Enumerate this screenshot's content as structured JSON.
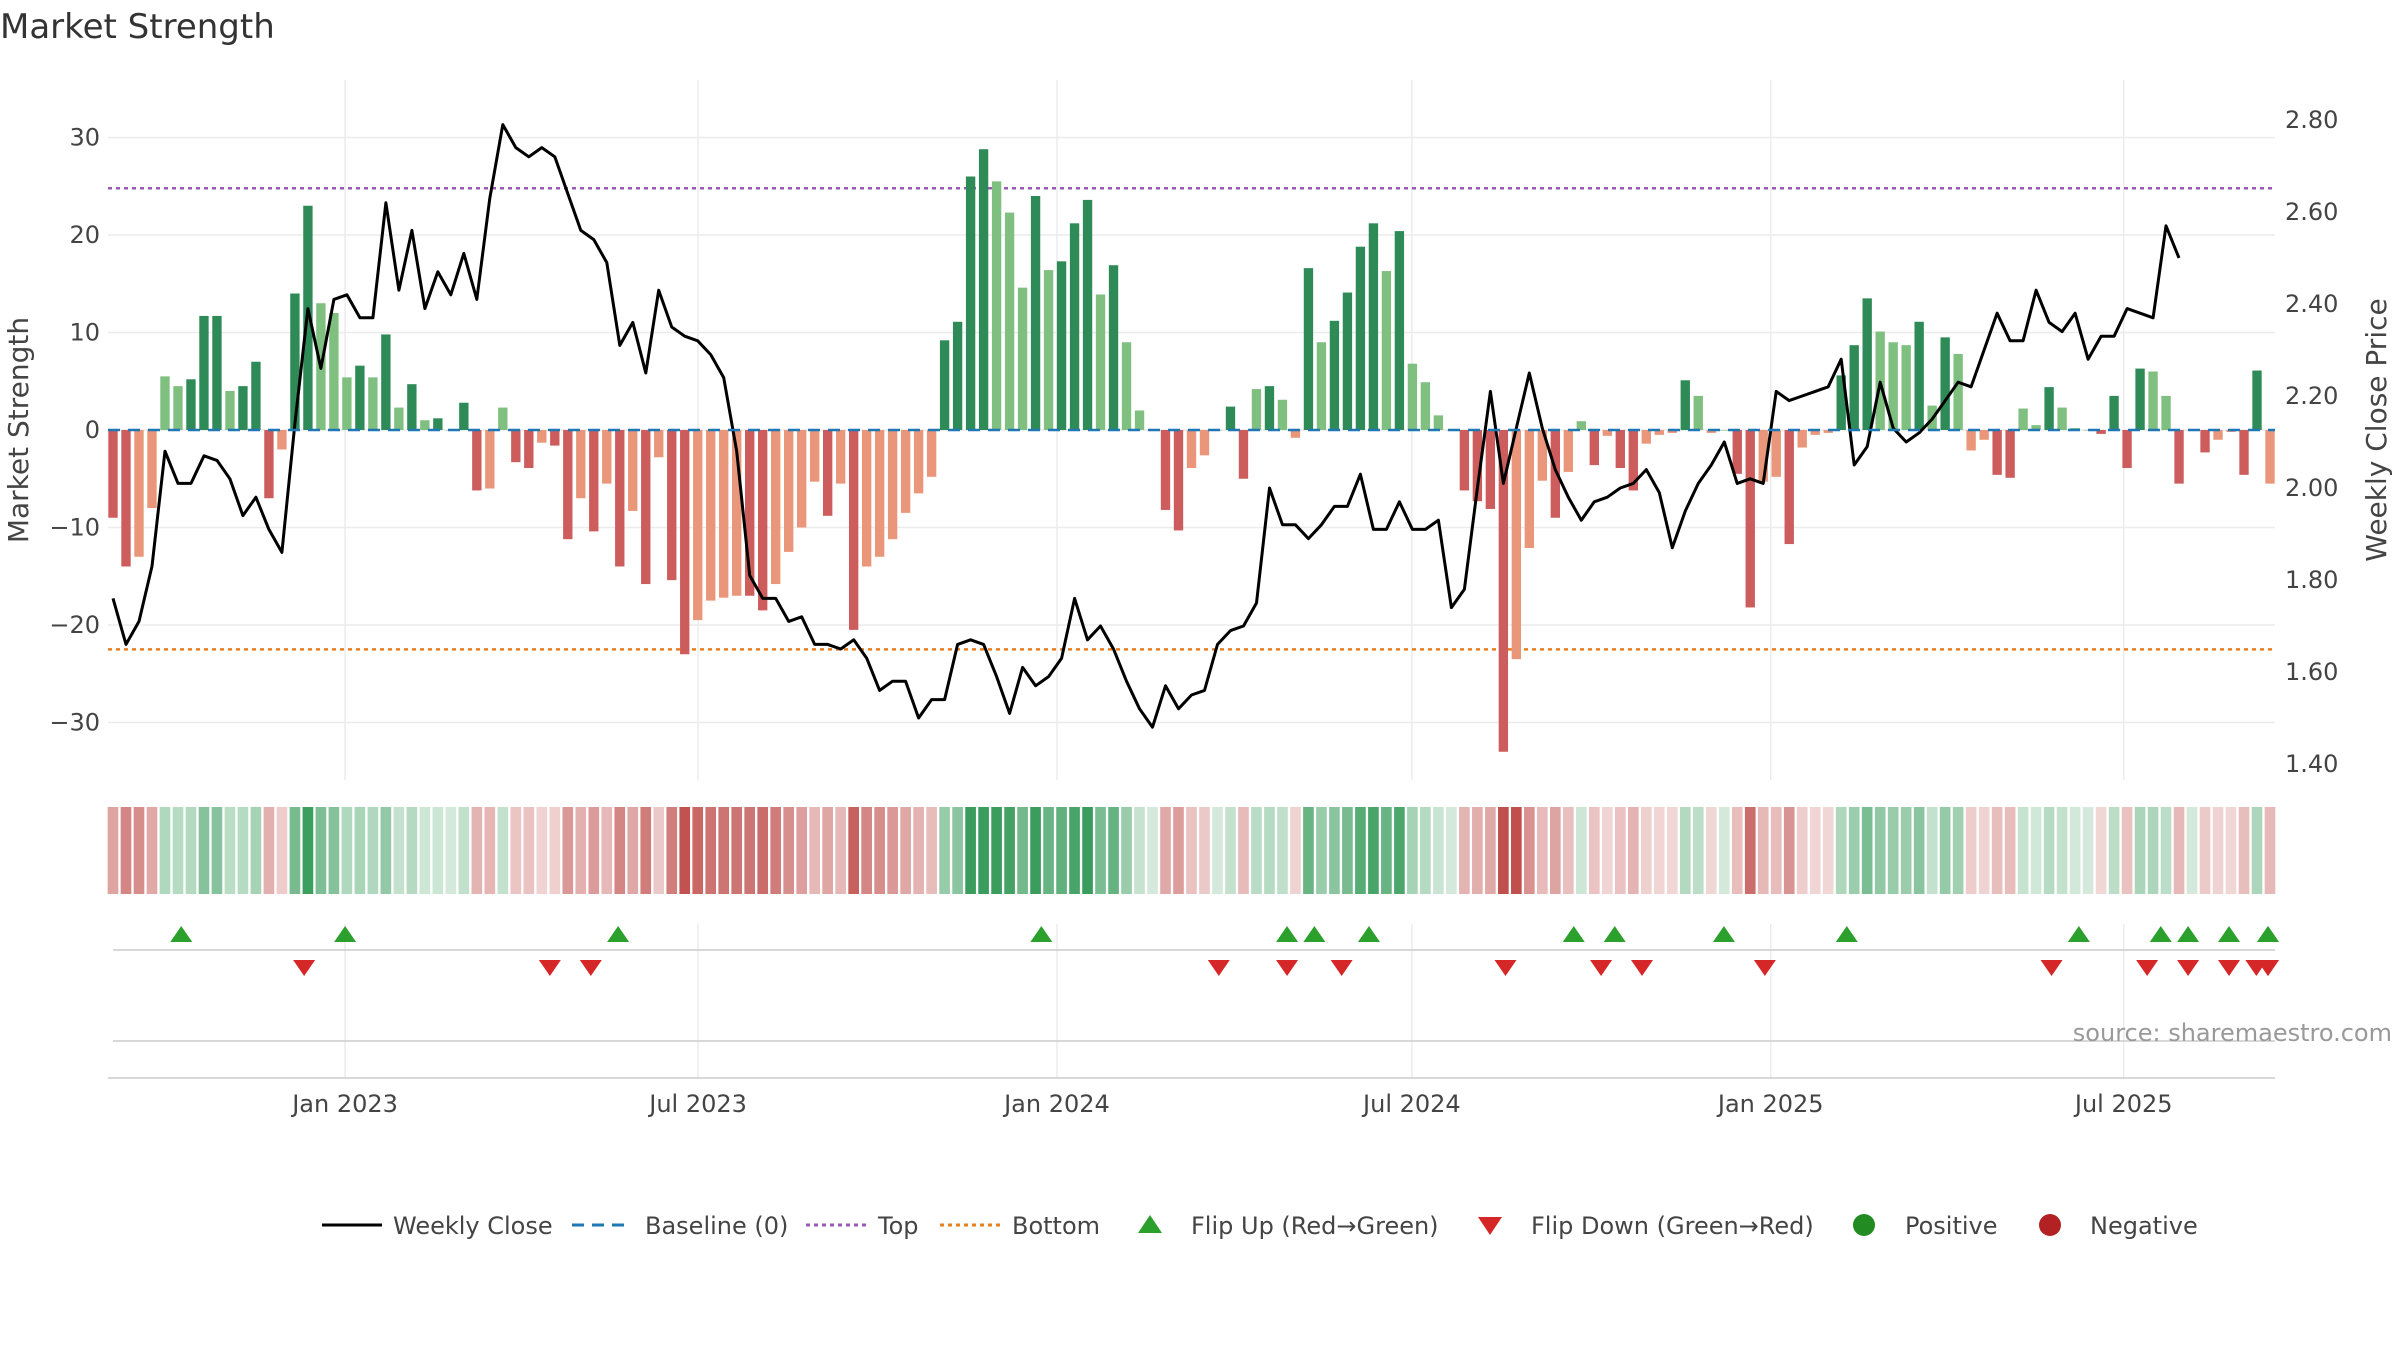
{
  "title": "Market Strength",
  "source": "source: sharemaestro.com",
  "colors": {
    "pos_strong": "#2e8b57",
    "pos_light": "#7fbf7f",
    "neg_strong": "#cd5c5c",
    "neg_light": "#e9967a",
    "price_line": "#000000",
    "baseline": "#1f77b4",
    "top": "#9b59b6",
    "bottom": "#e67e22",
    "flip_up": "#2ca02c",
    "flip_down": "#d62728",
    "positive_dot": "#228b22",
    "negative_dot": "#b22222"
  },
  "chart_data": {
    "type": "bar",
    "title": "Market Strength",
    "ylabel": "Market Strength",
    "y2label": "Weekly Close Price",
    "ylim": [
      -36,
      36
    ],
    "y2lim": [
      1.34,
      2.86
    ],
    "yticks": [
      -30,
      -20,
      -10,
      0,
      10,
      20,
      30
    ],
    "ytick_labels": [
      "−30",
      "−20",
      "−10",
      "0",
      "10",
      "20",
      "30"
    ],
    "y2ticks": [
      1.4,
      1.6,
      1.8,
      2.0,
      2.2,
      2.4,
      2.6,
      2.8
    ],
    "y2tick_labels": [
      "1.40",
      "1.60",
      "1.80",
      "2.00",
      "2.20",
      "2.40",
      "2.60",
      "2.80"
    ],
    "x_start": "2022-09-04",
    "x_end": "2025-09-14",
    "xticks": [
      "2023-01-01",
      "2023-07-01",
      "2024-01-01",
      "2024-07-01",
      "2025-01-01",
      "2025-07-01"
    ],
    "xtick_labels": [
      "Jan 2023",
      "Jul 2023",
      "Jan 2024",
      "Jul 2024",
      "Jan 2025",
      "Jul 2025"
    ],
    "top_line": 24.8,
    "bottom_line": -22.5,
    "baseline": 0,
    "grid": true,
    "legend_position": "bottom",
    "legend": [
      "Weekly Close",
      "Baseline (0)",
      "Top",
      "Bottom",
      "Flip Up (Red→Green)",
      "Flip Down (Green→Red)",
      "Positive",
      "Negative"
    ],
    "series": [
      {
        "name": "Market Strength",
        "values": [
          -9,
          -14,
          -13,
          -8,
          5.5,
          4.5,
          5.2,
          11.7,
          11.7,
          4,
          4.5,
          7,
          -7,
          -2,
          14,
          23,
          13,
          12,
          5.4,
          6.6,
          5.4,
          9.8,
          2.3,
          4.7,
          1,
          1.2,
          0,
          2.8,
          -6.2,
          -6,
          2.3,
          -3.3,
          -3.9,
          -1.3,
          -1.6,
          -11.2,
          -7,
          -10.4,
          -5.5,
          -14,
          -8.3,
          -15.8,
          -2.8,
          -15.4,
          -23,
          -19.5,
          -17.5,
          -17.2,
          -17,
          -17,
          -18.5,
          -15.8,
          -12.5,
          -10,
          -5.3,
          -8.8,
          -5.5,
          -20.5,
          -14,
          -13,
          -11.2,
          -8.5,
          -6.5,
          -4.8,
          9.2,
          11.1,
          26,
          28.8,
          25.5,
          22.3,
          14.6,
          24,
          16.4,
          17.3,
          21.2,
          23.6,
          13.9,
          16.9,
          9,
          2,
          0,
          -8.2,
          -10.3,
          -3.9,
          -2.6,
          0,
          2.4,
          -5,
          4.2,
          4.5,
          3.1,
          -0.8,
          16.6,
          9,
          11.2,
          14.1,
          18.8,
          21.2,
          16.3,
          20.4,
          6.8,
          4.9,
          1.5,
          0,
          -6.2,
          -7.3,
          -8.1,
          -33,
          -23.5,
          -12.1,
          -5.2,
          -9,
          -4.3,
          0.9,
          -3.6,
          -0.6,
          -3.9,
          -6.2,
          -1.4,
          -0.5,
          -0.3,
          5.1,
          3.5,
          -0.3,
          0,
          -4.5,
          -18.2,
          -5.3,
          -4.8,
          -11.7,
          -1.8,
          -0.5,
          -0.3,
          5.6,
          8.7,
          13.5,
          10.1,
          9,
          8.7,
          11.1,
          2.5,
          9.5,
          7.8,
          -2.1,
          -1,
          -4.6,
          -4.9,
          2.2,
          0.5,
          4.4,
          2.3,
          0.2,
          0,
          -0.4,
          3.5,
          -3.9,
          6.3,
          6,
          3.5,
          -5.5,
          0,
          -2.3,
          -1,
          -0.2,
          -4.6,
          6.1,
          -5.5
        ]
      },
      {
        "name": "Weekly Close",
        "values": [
          1.76,
          1.66,
          1.71,
          1.83,
          2.08,
          2.01,
          2.01,
          2.07,
          2.06,
          2.02,
          1.94,
          1.98,
          1.91,
          1.86,
          2.14,
          2.39,
          2.26,
          2.41,
          2.42,
          2.37,
          2.37,
          2.62,
          2.43,
          2.56,
          2.39,
          2.47,
          2.42,
          2.51,
          2.41,
          2.63,
          2.79,
          2.74,
          2.72,
          2.74,
          2.72,
          2.64,
          2.56,
          2.54,
          2.49,
          2.31,
          2.36,
          2.25,
          2.43,
          2.35,
          2.33,
          2.32,
          2.29,
          2.24,
          2.08,
          1.81,
          1.76,
          1.76,
          1.71,
          1.72,
          1.66,
          1.66,
          1.65,
          1.67,
          1.63,
          1.56,
          1.58,
          1.58,
          1.5,
          1.54,
          1.54,
          1.66,
          1.67,
          1.66,
          1.59,
          1.51,
          1.61,
          1.57,
          1.59,
          1.63,
          1.76,
          1.67,
          1.7,
          1.65,
          1.58,
          1.52,
          1.48,
          1.57,
          1.52,
          1.55,
          1.56,
          1.66,
          1.69,
          1.7,
          1.75,
          2.0,
          1.92,
          1.92,
          1.89,
          1.92,
          1.96,
          1.96,
          2.03,
          1.91,
          1.91,
          1.97,
          1.91,
          1.91,
          1.93,
          1.74,
          1.78,
          2.0,
          2.21,
          2.01,
          2.13,
          2.25,
          2.13,
          2.04,
          1.98,
          1.93,
          1.97,
          1.98,
          2.0,
          2.01,
          2.04,
          1.99,
          1.87,
          1.95,
          2.01,
          2.05,
          2.1,
          2.01,
          2.02,
          2.01,
          2.21,
          2.19,
          2.2,
          2.21,
          2.22,
          2.28,
          2.05,
          2.09,
          2.23,
          2.13,
          2.1,
          2.12,
          2.15,
          2.19,
          2.23,
          2.22,
          2.3,
          2.38,
          2.32,
          2.32,
          2.43,
          2.36,
          2.34,
          2.38,
          2.28,
          2.33,
          2.33,
          2.39,
          2.38,
          2.37,
          2.57,
          2.5
        ]
      }
    ],
    "flip_up_dates": [
      "2022-10-09",
      "2023-01-01",
      "2023-05-21",
      "2023-12-24",
      "2024-04-28",
      "2024-05-12",
      "2024-06-09",
      "2024-09-22",
      "2024-10-13",
      "2024-12-08",
      "2025-02-09",
      "2025-06-08",
      "2025-07-20",
      "2025-08-03",
      "2025-08-24",
      "2025-09-14",
      "2025-09-28"
    ],
    "flip_down_dates": [
      "2022-12-11",
      "2023-04-16",
      "2023-05-07",
      "2024-03-24",
      "2024-04-28",
      "2024-05-26",
      "2024-08-18",
      "2024-10-06",
      "2024-10-27",
      "2024-12-29",
      "2025-05-25",
      "2025-07-13",
      "2025-08-03",
      "2025-08-24",
      "2025-09-07",
      "2025-09-28",
      "2025-10-05"
    ]
  }
}
